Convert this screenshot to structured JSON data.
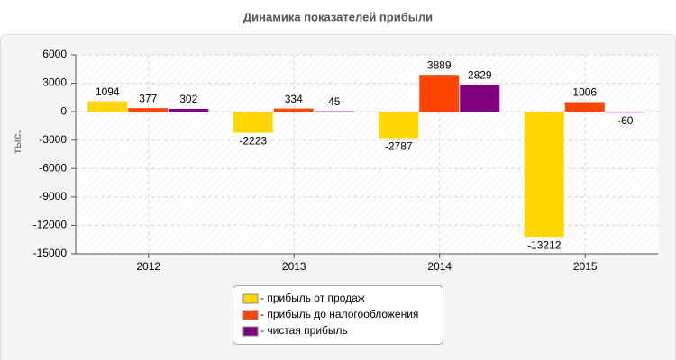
{
  "chart_data": {
    "type": "bar",
    "title": "Динамика показателей прибыли",
    "ylabel": "тыс.",
    "categories": [
      "2012",
      "2013",
      "2014",
      "2015"
    ],
    "series": [
      {
        "name": "- прибыль от продаж",
        "color": "#ffd700",
        "values": [
          1094,
          -2223,
          -2787,
          -13212
        ]
      },
      {
        "name": "- прибыль до налогообложения",
        "color": "#ff4500",
        "values": [
          377,
          334,
          3889,
          1006
        ]
      },
      {
        "name": "- чистая прибыль",
        "color": "#800080",
        "values": [
          302,
          45,
          2829,
          -60
        ]
      }
    ],
    "ylim": [
      -15000,
      6000
    ],
    "yticks": [
      -15000,
      -12000,
      -9000,
      -6000,
      -3000,
      0,
      3000,
      6000
    ],
    "grid": true,
    "legend": "bottom"
  }
}
